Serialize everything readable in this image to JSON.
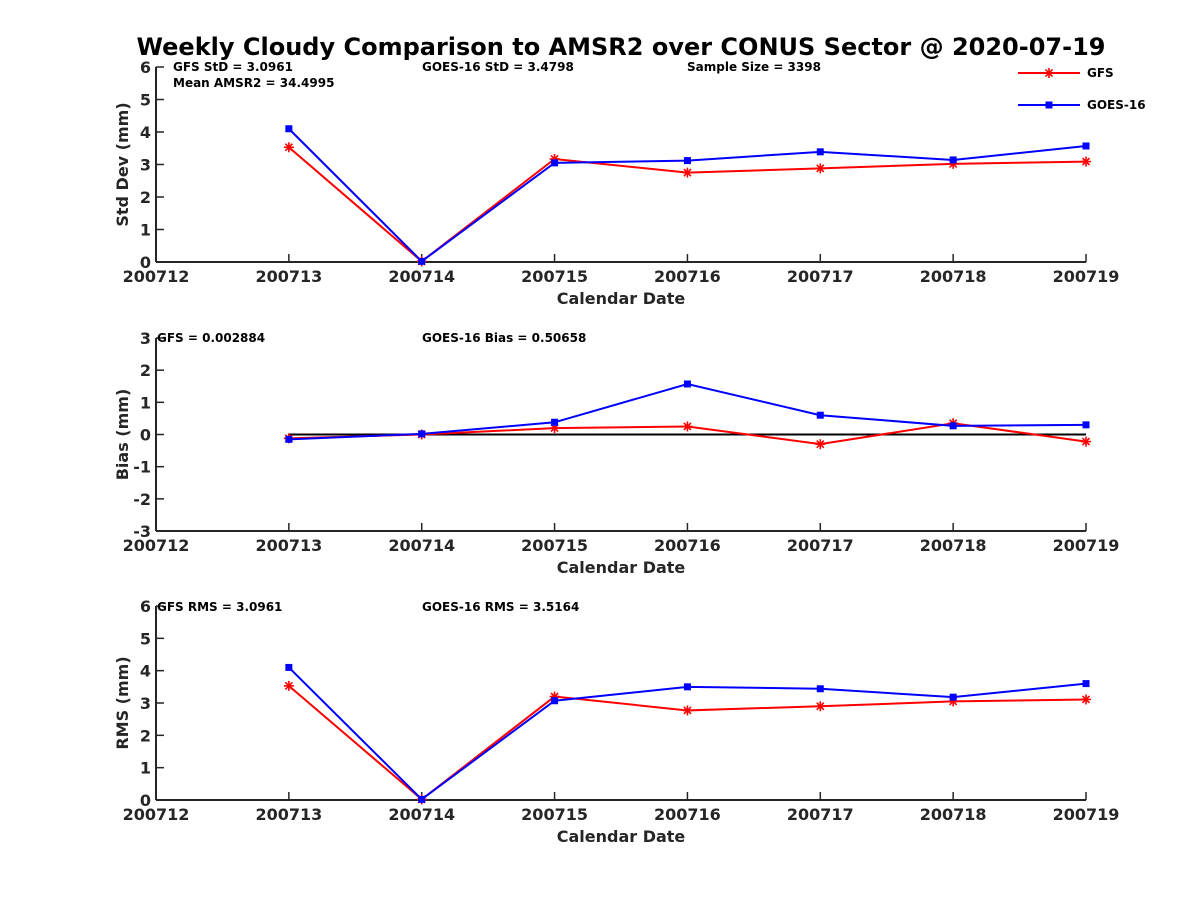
{
  "title": "Weekly Cloudy Comparison to AMSR2 over CONUS Sector @ 2020-07-19",
  "legend": [
    {
      "name": "GFS",
      "color": "#ff0000",
      "marker": "asterisk"
    },
    {
      "name": "GOES-16",
      "color": "#0000ff",
      "marker": "square"
    }
  ],
  "chart_data": [
    {
      "type": "line",
      "id": "std",
      "categories": [
        "200712",
        "200713",
        "200714",
        "200715",
        "200716",
        "200717",
        "200718",
        "200719"
      ],
      "xlabel": "Calendar Date",
      "ylabel": "Std Dev (mm)",
      "ylim": [
        0,
        6
      ],
      "yticks": [
        "0",
        "1",
        "2",
        "3",
        "4",
        "5",
        "6"
      ],
      "annotations": [
        "GFS StD = 3.0961",
        "Mean AMSR2 = 34.4995",
        "GOES-16 StD = 3.4798",
        "Sample Size = 3398"
      ],
      "zero_line": false,
      "series": [
        {
          "name": "GFS",
          "values": [
            null,
            3.53,
            0.02,
            3.17,
            2.75,
            2.88,
            3.02,
            3.09
          ]
        },
        {
          "name": "GOES-16",
          "values": [
            null,
            4.1,
            0.02,
            3.05,
            3.12,
            3.39,
            3.14,
            3.57
          ]
        }
      ]
    },
    {
      "type": "line",
      "id": "bias",
      "categories": [
        "200712",
        "200713",
        "200714",
        "200715",
        "200716",
        "200717",
        "200718",
        "200719"
      ],
      "xlabel": "Calendar Date",
      "ylabel": "Bias (mm)",
      "ylim": [
        -3,
        3
      ],
      "yticks": [
        "-3",
        "-2",
        "-1",
        "0",
        "1",
        "2",
        "3"
      ],
      "annotations": [
        "GFS = 0.002884",
        "GOES-16 Bias  = 0.50658"
      ],
      "zero_line": true,
      "series": [
        {
          "name": "GFS",
          "values": [
            null,
            -0.12,
            0.0,
            0.2,
            0.25,
            -0.3,
            0.35,
            -0.22
          ]
        },
        {
          "name": "GOES-16",
          "values": [
            null,
            -0.15,
            0.02,
            0.38,
            1.57,
            0.6,
            0.27,
            0.3
          ]
        }
      ]
    },
    {
      "type": "line",
      "id": "rms",
      "categories": [
        "200712",
        "200713",
        "200714",
        "200715",
        "200716",
        "200717",
        "200718",
        "200719"
      ],
      "xlabel": "Calendar Date",
      "ylabel": "RMS (mm)",
      "ylim": [
        0,
        6
      ],
      "yticks": [
        "0",
        "1",
        "2",
        "3",
        "4",
        "5",
        "6"
      ],
      "annotations": [
        "GFS RMS = 3.0961",
        "GOES-16 RMS = 3.5164"
      ],
      "zero_line": false,
      "series": [
        {
          "name": "GFS",
          "values": [
            null,
            3.53,
            0.02,
            3.2,
            2.77,
            2.9,
            3.05,
            3.11
          ]
        },
        {
          "name": "GOES-16",
          "values": [
            null,
            4.1,
            0.02,
            3.07,
            3.5,
            3.44,
            3.18,
            3.6
          ]
        }
      ]
    }
  ]
}
